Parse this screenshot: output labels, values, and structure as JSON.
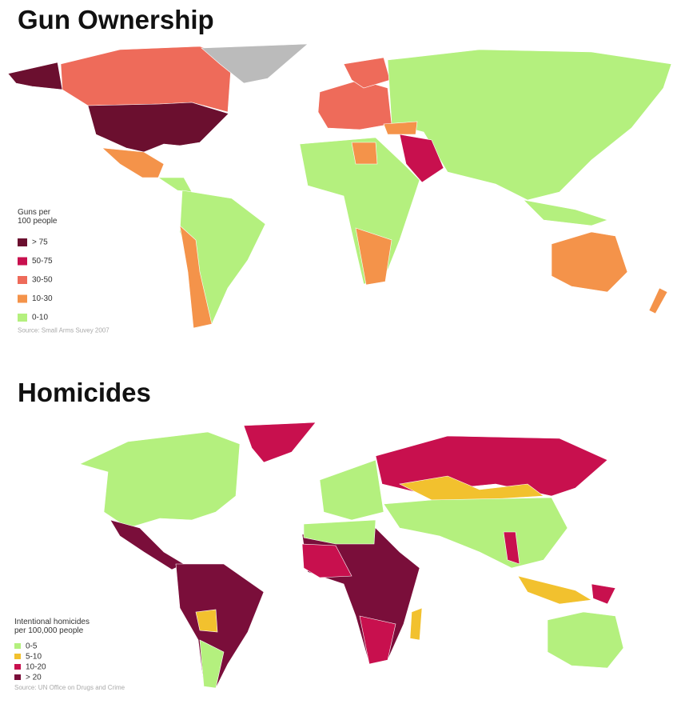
{
  "maps": [
    {
      "title": "Gun Ownership",
      "legend_title": [
        "Guns per",
        "100 people"
      ],
      "legend": [
        {
          "label": "> 75",
          "color": "#6b0f2f"
        },
        {
          "label": "50-75",
          "color": "#c8104e"
        },
        {
          "label": "30-50",
          "color": "#ee6b5a"
        },
        {
          "label": "10-30",
          "color": "#f4934a"
        },
        {
          "label": "0-10",
          "color": "#b4f07e"
        }
      ],
      "source": "Source: Small Arms Suvey 2007"
    },
    {
      "title": "Homicides",
      "legend_title": [
        "Intentional homicides",
        "per 100,000 people"
      ],
      "legend": [
        {
          "label": "0-5",
          "color": "#b4f07e"
        },
        {
          "label": "5-10",
          "color": "#f2c12e"
        },
        {
          "label": "10-20",
          "color": "#c8104e"
        },
        {
          "label": "> 20",
          "color": "#7a0e3a"
        }
      ],
      "source": "Source: UN Office on Drugs and Crime"
    }
  ]
}
